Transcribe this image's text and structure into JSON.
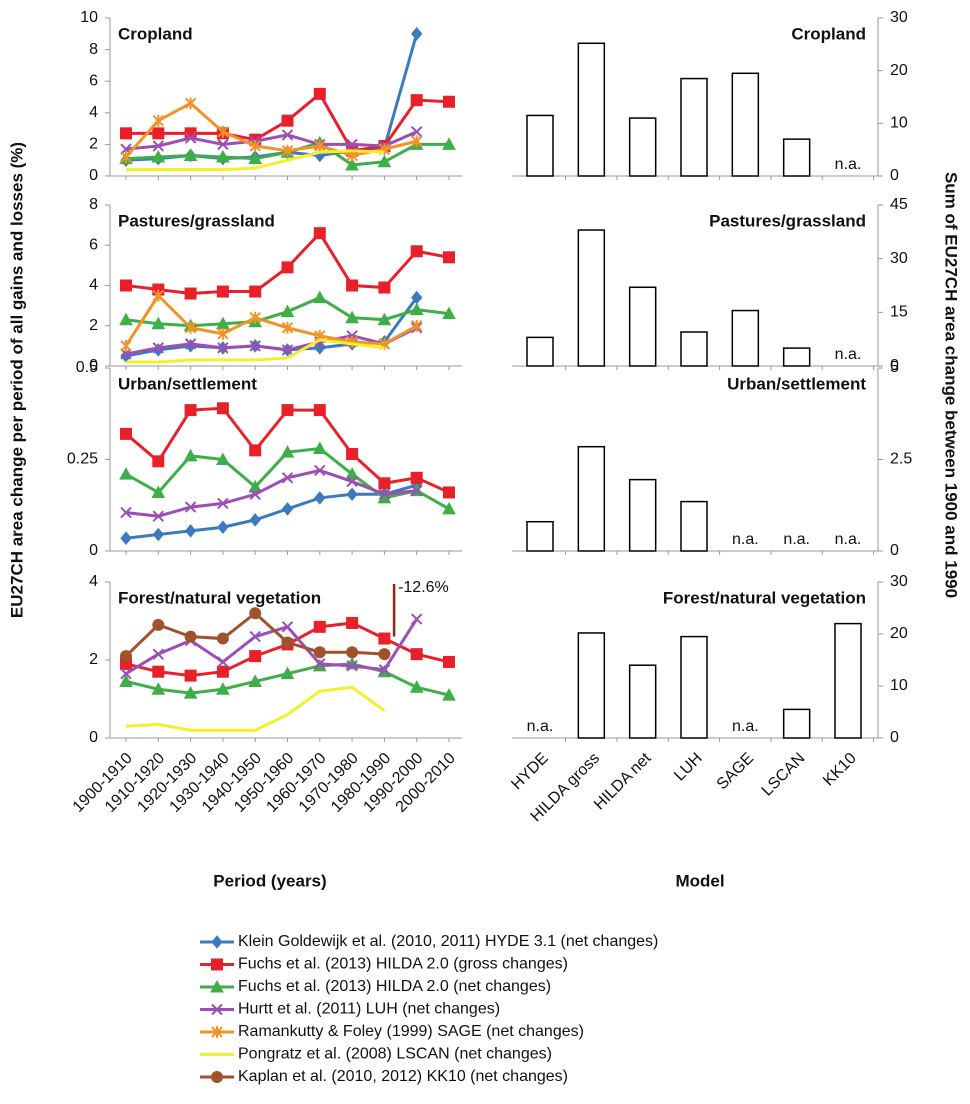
{
  "chart_data": [
    {
      "type": "line",
      "title": "Cropland",
      "ylabel": "EU27CH area change per period of all gains and losses (%)",
      "ylim": [
        0,
        10
      ],
      "yticks": [
        0,
        2,
        4,
        6,
        8,
        10
      ],
      "series": [
        {
          "name": "Klein Goldewijk et al. (2010, 2011) HYDE 3.1 (net changes)",
          "color": "#3a7bbf",
          "marker": "diamond",
          "values": [
            1.0,
            1.1,
            1.3,
            1.1,
            1.2,
            1.5,
            1.3,
            1.6,
            1.8,
            9.0,
            null
          ]
        },
        {
          "name": "Fuchs et al. (2013) HILDA 2.0 (gross changes)",
          "color": "#e8202a",
          "marker": "square",
          "values": [
            2.7,
            2.7,
            2.7,
            2.7,
            2.3,
            3.5,
            5.2,
            1.6,
            1.9,
            4.8,
            4.7
          ]
        },
        {
          "name": "Fuchs et al. (2013) HILDA 2.0 (net changes)",
          "color": "#3fae49",
          "marker": "triangle",
          "values": [
            1.1,
            1.2,
            1.3,
            1.2,
            1.1,
            1.5,
            2.1,
            0.7,
            0.9,
            2.0,
            2.0
          ]
        },
        {
          "name": "Hurtt et al. (2011) LUH (net changes)",
          "color": "#9b4fb4",
          "marker": "cross",
          "values": [
            1.7,
            1.9,
            2.4,
            2.0,
            2.2,
            2.6,
            2.0,
            2.0,
            1.9,
            2.8,
            null
          ]
        },
        {
          "name": "Ramankutty & Foley (1999) SAGE (net changes)",
          "color": "#f39325",
          "marker": "star",
          "values": [
            1.2,
            3.5,
            4.6,
            2.8,
            1.9,
            1.6,
            1.9,
            1.3,
            1.7,
            2.2,
            null
          ]
        },
        {
          "name": "Pongratz et al. (2008) LSCAN (net changes)",
          "color": "#f5ef2a",
          "marker": "none",
          "values": [
            0.4,
            0.4,
            0.4,
            0.4,
            0.5,
            1.0,
            1.5,
            1.6,
            1.5,
            null,
            null
          ]
        },
        {
          "name": "Kaplan et al. (2010, 2012) KK10 (net changes)",
          "color": "#a0522d",
          "marker": "circle",
          "values": [
            null,
            null,
            null,
            null,
            null,
            null,
            null,
            null,
            null,
            null,
            null
          ]
        }
      ]
    },
    {
      "type": "line",
      "title": "Pastures/grassland",
      "ylim": [
        0,
        8
      ],
      "yticks": [
        0,
        2,
        4,
        6,
        8
      ],
      "series": [
        {
          "values": [
            0.5,
            0.8,
            1.0,
            0.9,
            1.0,
            0.8,
            0.9,
            1.1,
            1.2,
            3.4,
            null
          ]
        },
        {
          "values": [
            4.0,
            3.8,
            3.6,
            3.7,
            3.7,
            4.9,
            6.6,
            4.0,
            3.9,
            5.7,
            5.4
          ]
        },
        {
          "values": [
            2.3,
            2.1,
            2.0,
            2.1,
            2.2,
            2.7,
            3.4,
            2.4,
            2.3,
            2.8,
            2.6
          ]
        },
        {
          "values": [
            0.6,
            0.9,
            1.1,
            0.9,
            1.0,
            0.8,
            1.2,
            1.5,
            1.1,
            1.9,
            null
          ]
        },
        {
          "values": [
            1.0,
            3.5,
            1.9,
            1.6,
            2.4,
            1.9,
            1.5,
            1.2,
            1.1,
            2.0,
            null
          ]
        },
        {
          "values": [
            0.2,
            0.2,
            0.3,
            0.3,
            0.3,
            0.4,
            1.3,
            1.1,
            0.9,
            null,
            null
          ]
        },
        {
          "values": [
            null,
            null,
            null,
            null,
            null,
            null,
            null,
            null,
            null,
            null,
            null
          ]
        }
      ]
    },
    {
      "type": "line",
      "title": "Urban/settlement",
      "ylim": [
        0,
        0.5
      ],
      "yticks": [
        0,
        0.25,
        0.5
      ],
      "series": [
        {
          "values": [
            0.035,
            0.045,
            0.055,
            0.065,
            0.085,
            0.115,
            0.145,
            0.155,
            0.155,
            0.18,
            null
          ]
        },
        {
          "values": [
            0.32,
            0.245,
            0.385,
            0.39,
            0.275,
            0.385,
            0.385,
            0.265,
            0.185,
            0.2,
            0.16
          ]
        },
        {
          "values": [
            0.21,
            0.16,
            0.26,
            0.25,
            0.175,
            0.27,
            0.28,
            0.21,
            0.145,
            0.165,
            0.115
          ]
        },
        {
          "values": [
            0.105,
            0.095,
            0.12,
            0.13,
            0.155,
            0.2,
            0.22,
            0.19,
            0.155,
            0.165,
            null
          ]
        },
        {
          "values": [
            null,
            null,
            null,
            null,
            null,
            null,
            null,
            null,
            null,
            null,
            null
          ]
        },
        {
          "values": [
            null,
            null,
            null,
            null,
            null,
            null,
            null,
            null,
            null,
            null,
            null
          ]
        },
        {
          "values": [
            null,
            null,
            null,
            null,
            null,
            null,
            null,
            null,
            null,
            null,
            null
          ]
        }
      ]
    },
    {
      "type": "line",
      "title": "Forest/natural vegetation",
      "xlabel": "Period (years)",
      "annotation": "-12.6%",
      "categories": [
        "1900-1910",
        "1910-1920",
        "1920-1930",
        "1930-1940",
        "1940-1950",
        "1950-1960",
        "1960-1970",
        "1970-1980",
        "1980-1990",
        "1990-2000",
        "2000-2010"
      ],
      "ylim": [
        0,
        4
      ],
      "yticks": [
        0,
        2,
        4
      ],
      "series": [
        {
          "values": [
            null,
            null,
            null,
            null,
            null,
            null,
            null,
            null,
            null,
            null,
            null
          ]
        },
        {
          "values": [
            1.9,
            1.7,
            1.6,
            1.7,
            2.1,
            2.4,
            2.85,
            2.95,
            2.55,
            2.15,
            1.95
          ]
        },
        {
          "values": [
            1.45,
            1.25,
            1.15,
            1.25,
            1.45,
            1.65,
            1.85,
            1.9,
            1.7,
            1.3,
            1.1
          ]
        },
        {
          "values": [
            1.65,
            2.15,
            2.5,
            1.95,
            2.6,
            2.85,
            1.9,
            1.85,
            1.75,
            3.05,
            null
          ]
        },
        {
          "values": [
            null,
            null,
            null,
            null,
            null,
            null,
            null,
            null,
            null,
            null,
            null
          ]
        },
        {
          "values": [
            0.3,
            0.35,
            0.2,
            0.2,
            0.2,
            0.6,
            1.2,
            1.3,
            0.7,
            null,
            null
          ]
        },
        {
          "values": [
            2.1,
            2.9,
            2.6,
            2.55,
            3.2,
            2.45,
            2.2,
            2.2,
            2.15,
            null,
            null
          ]
        }
      ]
    },
    {
      "type": "bar",
      "title": "Cropland",
      "ylabel": "Sum of EU27CH area change between 1900 and 1990",
      "color": "#ffffff",
      "ylim": [
        0,
        30
      ],
      "yticks": [
        0,
        10,
        20,
        30
      ],
      "values": [
        11.5,
        25.2,
        11,
        18.5,
        19.5,
        7,
        null
      ],
      "value_labels": [
        null,
        null,
        null,
        null,
        null,
        null,
        "n.a."
      ]
    },
    {
      "type": "bar",
      "title": "Pastures/grassland",
      "color": "#ffffff",
      "ylim": [
        0,
        45
      ],
      "yticks": [
        0,
        15,
        30,
        45
      ],
      "values": [
        8,
        38,
        22,
        9.5,
        15.5,
        5,
        null
      ],
      "value_labels": [
        null,
        null,
        null,
        null,
        null,
        null,
        "n.a."
      ]
    },
    {
      "type": "bar",
      "title": "Urban/settlement",
      "color": "#ffffff",
      "ylim": [
        0,
        5
      ],
      "yticks": [
        0,
        2.5,
        5
      ],
      "values": [
        0.8,
        2.85,
        1.95,
        1.35,
        null,
        null,
        null
      ],
      "value_labels": [
        null,
        null,
        null,
        null,
        "n.a.",
        "n.a.",
        "n.a."
      ]
    },
    {
      "type": "bar",
      "title": "Forest/natural vegetation",
      "color": "#ffffff",
      "xlabel": "Model",
      "categories": [
        "HYDE",
        "HILDA gross",
        "HILDA net",
        "LUH",
        "SAGE",
        "LSCAN",
        "KK10"
      ],
      "ylim": [
        0,
        30
      ],
      "yticks": [
        0,
        10,
        20,
        30
      ],
      "values": [
        null,
        20.2,
        14,
        19.5,
        null,
        5.5,
        22
      ],
      "value_labels": [
        "n.a.",
        null,
        null,
        null,
        "n.a.",
        null,
        null
      ]
    }
  ]
}
